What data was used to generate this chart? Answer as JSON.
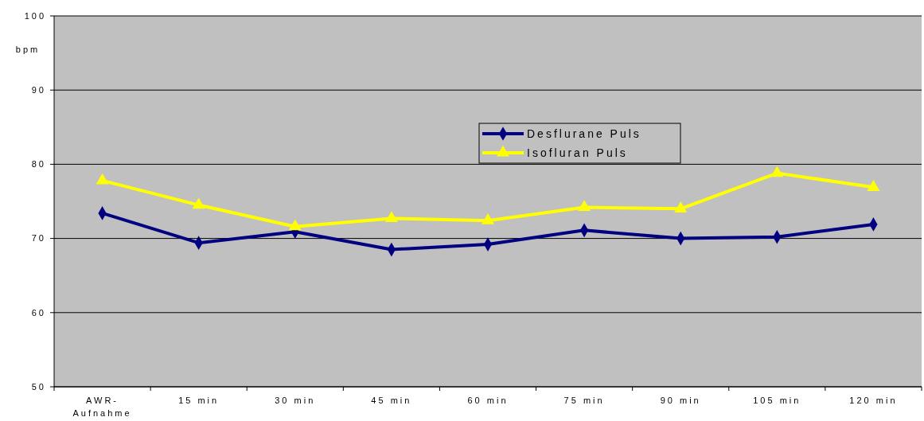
{
  "chart_data": {
    "type": "line",
    "ylabel": "bpm",
    "categories": [
      "AWR-Aufnahme",
      "15 min",
      "30 min",
      "45 min",
      "60 min",
      "75 min",
      "90 min",
      "105 min",
      "120 min"
    ],
    "series": [
      {
        "name": "Desflurane Puls",
        "color": "#000080",
        "marker": "diamond",
        "values": [
          73.4,
          69.4,
          70.9,
          68.5,
          69.2,
          71.1,
          70.0,
          70.2,
          71.9
        ]
      },
      {
        "name": "Isofluran Puls",
        "color": "#ffff00",
        "marker": "triangle",
        "values": [
          77.8,
          74.5,
          71.6,
          72.7,
          72.4,
          74.2,
          74.0,
          78.8,
          76.9
        ]
      }
    ],
    "ylim": [
      50,
      100
    ],
    "yticks": [
      50,
      60,
      70,
      80,
      90,
      100
    ],
    "grid": "y",
    "legend": "top right",
    "line_style": "solid"
  }
}
